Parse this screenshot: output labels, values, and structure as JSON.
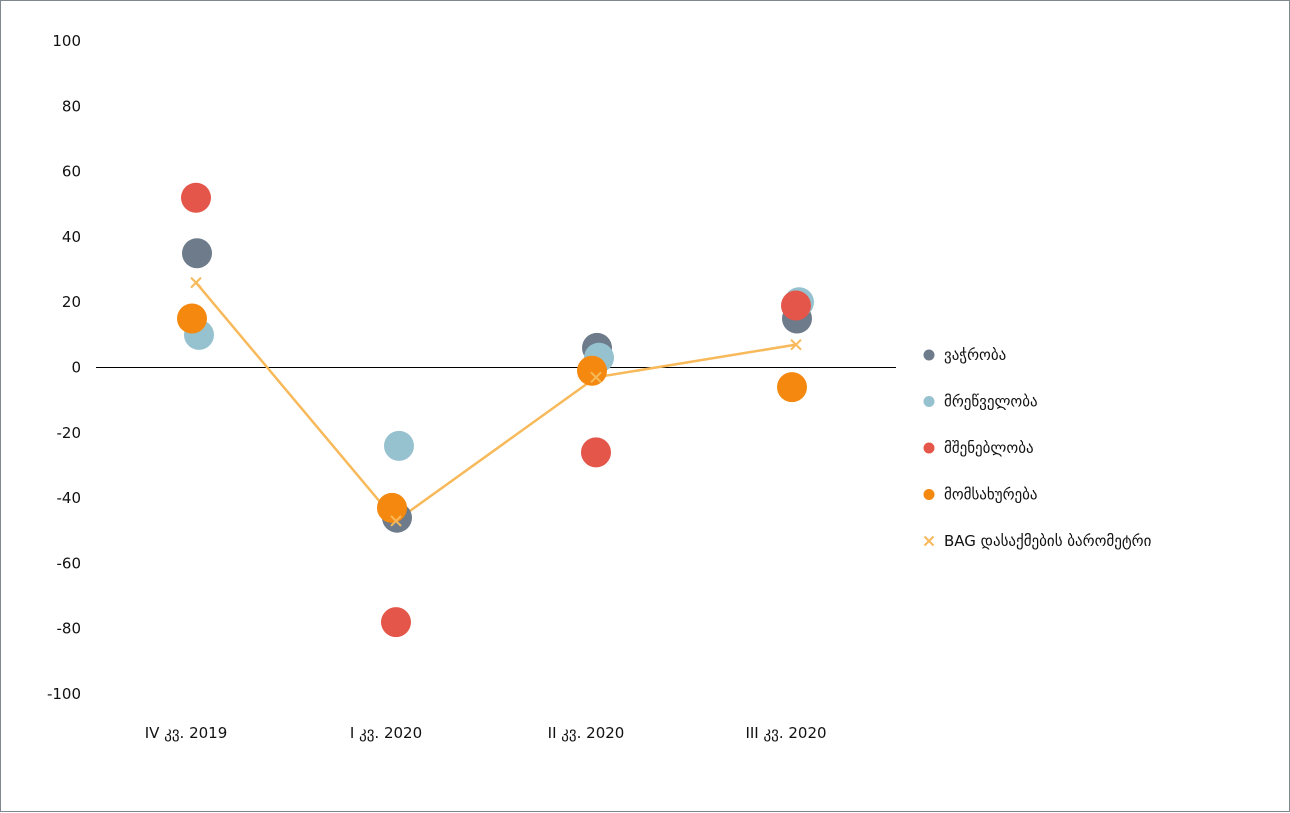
{
  "chart_data": {
    "type": "scatter",
    "categories": [
      "IV კვ. 2019",
      "I კვ. 2020",
      "II კვ. 2020",
      "III კვ. 2020"
    ],
    "ylim": [
      -100,
      100
    ],
    "yticks": [
      "100",
      "80",
      "60",
      "40",
      "20",
      "0",
      "-20",
      "-40",
      "-60",
      "-80",
      "-100"
    ],
    "grid": false,
    "legend_position": "right",
    "series": [
      {
        "name": "ვაჭრობა",
        "type": "scatter",
        "color": "#6e7b8a",
        "values": [
          35,
          -46,
          6,
          15
        ]
      },
      {
        "name": "მრეწველობა",
        "type": "scatter",
        "color": "#96c1cf",
        "values": [
          10,
          -24,
          3,
          20
        ]
      },
      {
        "name": "მშენებლობა",
        "type": "scatter",
        "color": "#e4564a",
        "values": [
          52,
          -78,
          -26,
          19
        ]
      },
      {
        "name": "მომსახურება",
        "type": "scatter",
        "color": "#f5890f",
        "values": [
          15,
          -43,
          -1,
          -6
        ]
      },
      {
        "name": "BAG დასაქმების ბარომეტრი",
        "type": "line",
        "marker": "x",
        "color": "#f7b95a",
        "values": [
          26,
          -47,
          -3,
          7
        ]
      }
    ]
  }
}
